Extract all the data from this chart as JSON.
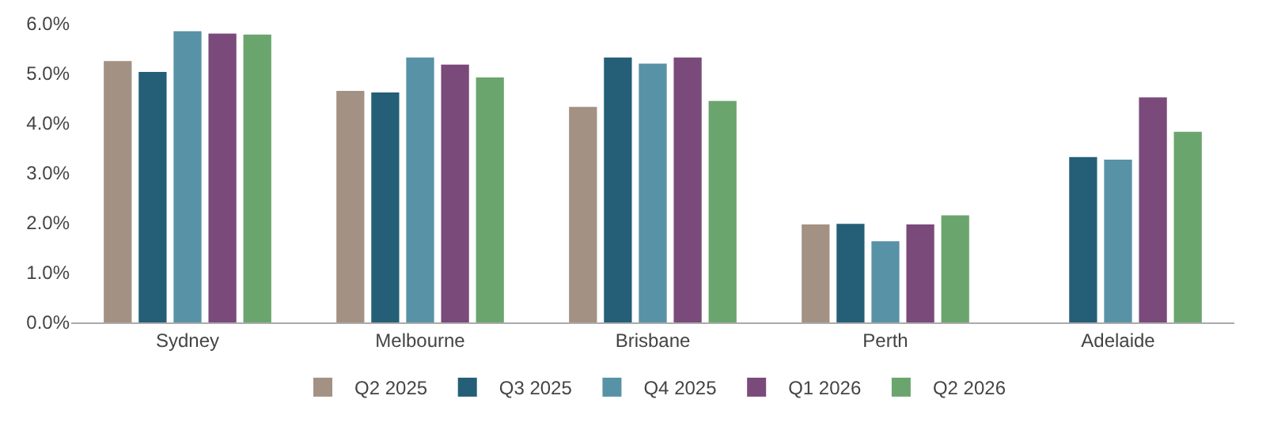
{
  "chart_data": {
    "type": "bar",
    "categories": [
      "Sydney",
      "Melbourne",
      "Brisbane",
      "Perth",
      "Adelaide"
    ],
    "series": [
      {
        "name": "Q2 2025",
        "color": "#a39183",
        "values": [
          5.25,
          4.65,
          4.33,
          1.97,
          null
        ]
      },
      {
        "name": "Q3 2025",
        "color": "#245f77",
        "values": [
          5.03,
          4.62,
          5.32,
          1.98,
          3.32
        ]
      },
      {
        "name": "Q4 2025",
        "color": "#5892a7",
        "values": [
          5.85,
          5.32,
          5.2,
          1.63,
          3.27
        ]
      },
      {
        "name": "Q1 2026",
        "color": "#7a4a7a",
        "values": [
          5.8,
          5.18,
          5.32,
          1.97,
          4.52
        ]
      },
      {
        "name": "Q2 2026",
        "color": "#6aa56e",
        "values": [
          5.78,
          4.92,
          4.45,
          2.15,
          3.83
        ]
      }
    ],
    "ylim": [
      0,
      6
    ],
    "yticks": [
      {
        "value": 0,
        "label": "0.0%"
      },
      {
        "value": 1,
        "label": "1.0%"
      },
      {
        "value": 2,
        "label": "2.0%"
      },
      {
        "value": 3,
        "label": "3.0%"
      },
      {
        "value": 4,
        "label": "4.0%"
      },
      {
        "value": 5,
        "label": "5.0%"
      },
      {
        "value": 6,
        "label": "6.0%"
      }
    ],
    "legend": "bottom"
  }
}
